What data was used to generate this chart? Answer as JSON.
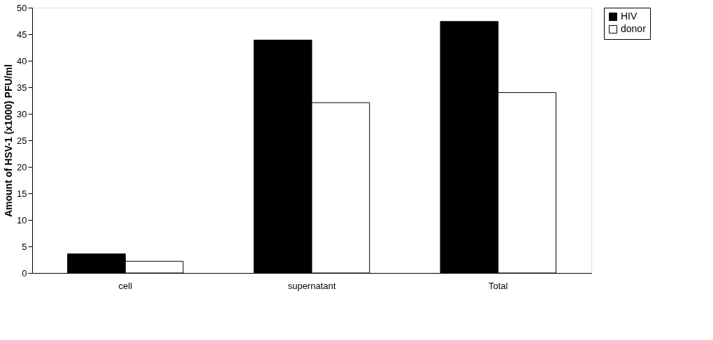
{
  "chart_data": {
    "type": "bar",
    "ylabel": "Amount of HSV-1 (x1000) PFU/ml",
    "categories": [
      "cell",
      "supernatant",
      "Total"
    ],
    "series": [
      {
        "name": "HIV",
        "color": "#000000",
        "values": [
          3.6,
          43.9,
          47.4
        ]
      },
      {
        "name": "donor",
        "color": "#ffffff",
        "values": [
          2.2,
          32.1,
          34.0
        ]
      }
    ],
    "ylim": [
      0,
      50
    ],
    "yticks": [
      0,
      5,
      10,
      15,
      20,
      25,
      30,
      35,
      40,
      45,
      50
    ],
    "grid": false,
    "legend": "right"
  }
}
